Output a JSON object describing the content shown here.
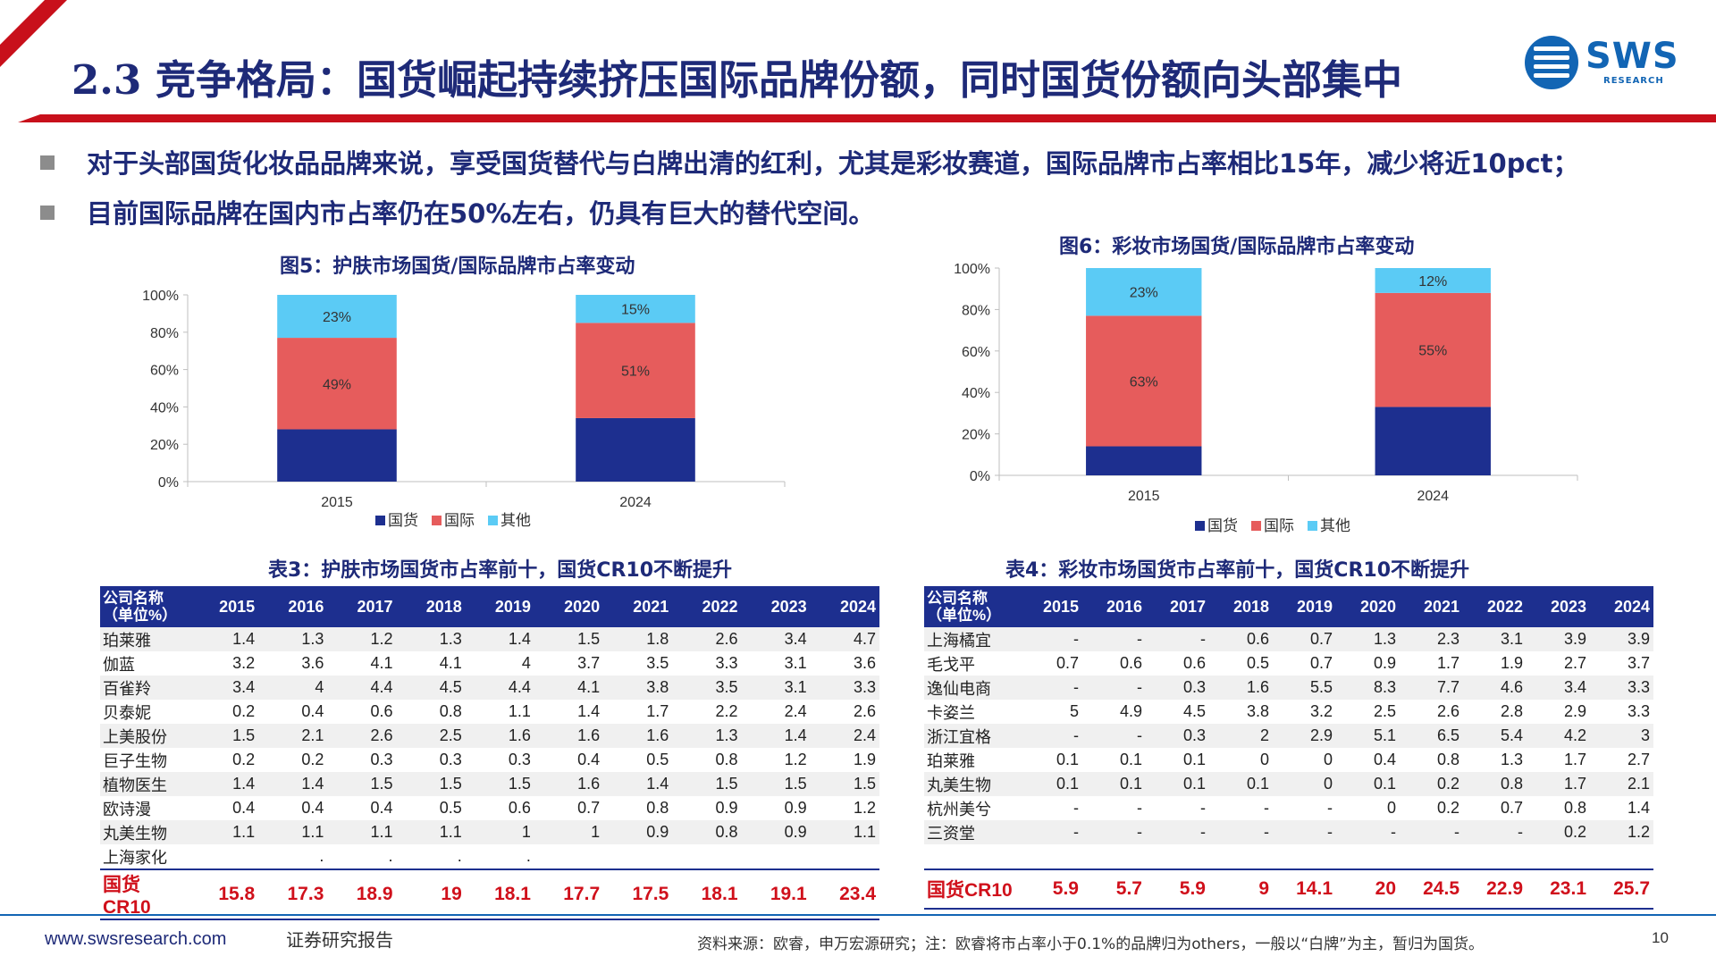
{
  "header": {
    "title": "2.3 竞争格局：国货崛起持续挤压国际品牌份额，同时国货份额向头部集中",
    "logo_text": "SWS",
    "logo_sub": "RESEARCH",
    "brand_color": "#c8101b",
    "title_color": "#1e2a78"
  },
  "bullets": [
    "对于头部国货化妆品品牌来说，享受国货替代与白牌出清的红利，尤其是彩妆赛道，国际品牌市占率相比15年，减少将近10pct；",
    "目前国际品牌在国内市占率仍在50%左右，仍具有巨大的替代空间。"
  ],
  "chart_data": [
    {
      "type": "bar",
      "stacked": true,
      "title": "图5：护肤市场国货/国际品牌市占率变动",
      "categories": [
        "2015",
        "2024"
      ],
      "yticks": [
        "0%",
        "20%",
        "40%",
        "60%",
        "80%",
        "100%"
      ],
      "ylim": [
        0,
        100
      ],
      "series": [
        {
          "name": "国货",
          "color": "#1d2f8f",
          "values": [
            28,
            34
          ],
          "labels": [
            "",
            ""
          ]
        },
        {
          "name": "国际",
          "color": "#e65c5c",
          "values": [
            49,
            51
          ],
          "labels": [
            "49%",
            "51%"
          ]
        },
        {
          "name": "其他",
          "color": "#5bcbf5",
          "values": [
            23,
            15
          ],
          "labels": [
            "23%",
            "15%"
          ]
        }
      ],
      "legend": "bottom"
    },
    {
      "type": "bar",
      "stacked": true,
      "title": "图6：彩妆市场国货/国际品牌市占率变动",
      "categories": [
        "2015",
        "2024"
      ],
      "yticks": [
        "0%",
        "20%",
        "40%",
        "60%",
        "80%",
        "100%"
      ],
      "ylim": [
        0,
        100
      ],
      "series": [
        {
          "name": "国货",
          "color": "#1d2f8f",
          "values": [
            14,
            33
          ],
          "labels": [
            "",
            ""
          ]
        },
        {
          "name": "国际",
          "color": "#e65c5c",
          "values": [
            63,
            55
          ],
          "labels": [
            "63%",
            "55%"
          ]
        },
        {
          "name": "其他",
          "color": "#5bcbf5",
          "values": [
            23,
            12
          ],
          "labels": [
            "23%",
            "12%"
          ]
        }
      ],
      "legend": "bottom"
    }
  ],
  "tables": [
    {
      "title": "表3：护肤市场国货市占率前十，国货CR10不断提升",
      "header_name": [
        "公司名称",
        "（单位%）"
      ],
      "years": [
        "2015",
        "2016",
        "2017",
        "2018",
        "2019",
        "2020",
        "2021",
        "2022",
        "2023",
        "2024"
      ],
      "rows": [
        {
          "name": "珀莱雅",
          "values": [
            "1.4",
            "1.3",
            "1.2",
            "1.3",
            "1.4",
            "1.5",
            "1.8",
            "2.6",
            "3.4",
            "4.7"
          ]
        },
        {
          "name": "伽蓝",
          "values": [
            "3.2",
            "3.6",
            "4.1",
            "4.1",
            "4",
            "3.7",
            "3.5",
            "3.3",
            "3.1",
            "3.6"
          ]
        },
        {
          "name": "百雀羚",
          "values": [
            "3.4",
            "4",
            "4.4",
            "4.5",
            "4.4",
            "4.1",
            "3.8",
            "3.5",
            "3.1",
            "3.3"
          ]
        },
        {
          "name": "贝泰妮",
          "values": [
            "0.2",
            "0.4",
            "0.6",
            "0.8",
            "1.1",
            "1.4",
            "1.7",
            "2.2",
            "2.4",
            "2.6"
          ]
        },
        {
          "name": "上美股份",
          "values": [
            "1.5",
            "2.1",
            "2.6",
            "2.5",
            "1.6",
            "1.6",
            "1.6",
            "1.3",
            "1.4",
            "2.4"
          ]
        },
        {
          "name": "巨子生物",
          "values": [
            "0.2",
            "0.2",
            "0.3",
            "0.3",
            "0.3",
            "0.4",
            "0.5",
            "0.8",
            "1.2",
            "1.9"
          ]
        },
        {
          "name": "植物医生",
          "values": [
            "1.4",
            "1.4",
            "1.5",
            "1.5",
            "1.5",
            "1.6",
            "1.4",
            "1.5",
            "1.5",
            "1.5"
          ]
        },
        {
          "name": "欧诗漫",
          "values": [
            "0.4",
            "0.4",
            "0.4",
            "0.5",
            "0.6",
            "0.7",
            "0.8",
            "0.9",
            "0.9",
            "1.2"
          ]
        },
        {
          "name": "丸美生物",
          "values": [
            "1.1",
            "1.1",
            "1.1",
            "1.1",
            "1",
            "1",
            "0.9",
            "0.8",
            "0.9",
            "1.1"
          ]
        },
        {
          "name": "上海家化",
          "values": [
            "",
            ".",
            ".",
            ".",
            ".",
            "",
            "",
            "",
            "",
            ""
          ]
        }
      ],
      "total": {
        "name": "国货CR10",
        "values": [
          "15.8",
          "17.3",
          "18.9",
          "19",
          "18.1",
          "17.7",
          "17.5",
          "18.1",
          "19.1",
          "23.4"
        ]
      }
    },
    {
      "title": "表4：彩妆市场国货市占率前十，国货CR10不断提升",
      "header_name": [
        "公司名称",
        "（单位%）"
      ],
      "years": [
        "2015",
        "2016",
        "2017",
        "2018",
        "2019",
        "2020",
        "2021",
        "2022",
        "2023",
        "2024"
      ],
      "rows": [
        {
          "name": "上海橘宜",
          "values": [
            "-",
            "-",
            "-",
            "0.6",
            "0.7",
            "1.3",
            "2.3",
            "3.1",
            "3.9",
            "3.9"
          ]
        },
        {
          "name": "毛戈平",
          "values": [
            "0.7",
            "0.6",
            "0.6",
            "0.5",
            "0.7",
            "0.9",
            "1.7",
            "1.9",
            "2.7",
            "3.7"
          ]
        },
        {
          "name": "逸仙电商",
          "values": [
            "-",
            "-",
            "0.3",
            "1.6",
            "5.5",
            "8.3",
            "7.7",
            "4.6",
            "3.4",
            "3.3"
          ]
        },
        {
          "name": "卡姿兰",
          "values": [
            "5",
            "4.9",
            "4.5",
            "3.8",
            "3.2",
            "2.5",
            "2.6",
            "2.8",
            "2.9",
            "3.3"
          ]
        },
        {
          "name": "浙江宜格",
          "values": [
            "-",
            "-",
            "0.3",
            "2",
            "2.9",
            "5.1",
            "6.5",
            "5.4",
            "4.2",
            "3"
          ]
        },
        {
          "name": "珀莱雅",
          "values": [
            "0.1",
            "0.1",
            "0.1",
            "0",
            "0",
            "0.4",
            "0.8",
            "1.3",
            "1.7",
            "2.7"
          ]
        },
        {
          "name": "丸美生物",
          "values": [
            "0.1",
            "0.1",
            "0.1",
            "0.1",
            "0",
            "0.1",
            "0.2",
            "0.8",
            "1.7",
            "2.1"
          ]
        },
        {
          "name": "杭州美兮",
          "values": [
            "-",
            "-",
            "-",
            "-",
            "-",
            "0",
            "0.2",
            "0.7",
            "0.8",
            "1.4"
          ]
        },
        {
          "name": "三资堂",
          "values": [
            "-",
            "-",
            "-",
            "-",
            "-",
            "-",
            "-",
            "-",
            "0.2",
            "1.2"
          ]
        },
        {
          "name": "",
          "values": [
            "",
            "",
            "",
            "",
            "",
            "",
            "",
            "",
            "",
            ""
          ]
        }
      ],
      "total": {
        "name": "国货CR10",
        "values": [
          "5.9",
          "5.7",
          "5.9",
          "9",
          "14.1",
          "20",
          "24.5",
          "22.9",
          "23.1",
          "25.7"
        ]
      }
    }
  ],
  "footer": {
    "url": "www.swsresearch.com",
    "doc_type": "证券研究报告",
    "source": "资料来源：欧睿，申万宏源研究；注：欧睿将市占率小于0.1%的品牌归为others，一般以“白牌”为主，暂归为国货。",
    "page": "10"
  }
}
